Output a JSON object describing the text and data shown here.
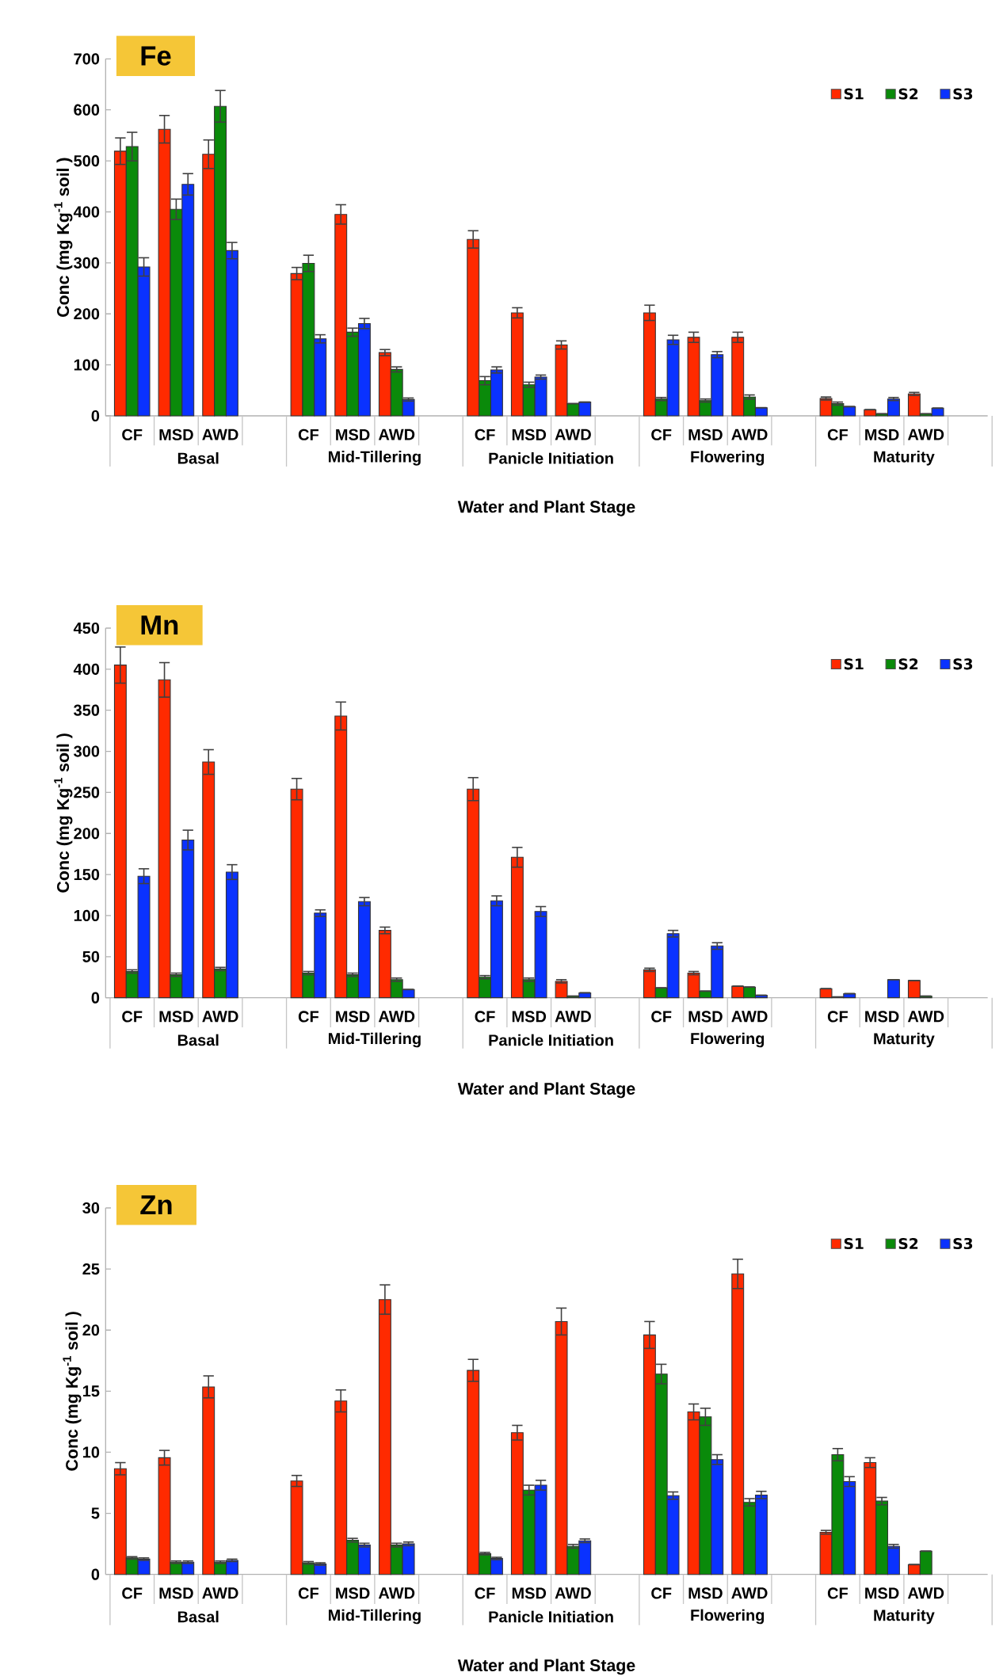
{
  "chart_data": [
    {
      "type": "bar",
      "title": "Fe",
      "xlabel": "Water and Plant Stage",
      "ylabel": "Conc (mg Kg$^{-1}$ soil )",
      "categories": [
        "CF",
        "MSD",
        "AWD",
        null,
        "CF",
        "MSD",
        "AWD",
        null,
        "CF",
        "MSD",
        "AWD",
        null,
        "CF",
        "MSD",
        "AWD",
        null,
        "CF",
        "MSD",
        "AWD",
        null
      ],
      "annotations": [
        "Basal",
        "Mid-Tillering",
        "Panicle Initiation",
        "Flowering",
        "Maturity"
      ],
      "ylim": [
        0,
        700
      ],
      "yticks": [
        0,
        100,
        200,
        300,
        400,
        500,
        600,
        700
      ],
      "legend": "top right",
      "series": [
        {
          "name": "S1",
          "color": "#ff2a00",
          "values": [
            519,
            562,
            513,
            null,
            279,
            395,
            124,
            null,
            346,
            202,
            139,
            null,
            202,
            154,
            154,
            null,
            34,
            12,
            43,
            null
          ],
          "errors": [
            26,
            27,
            28,
            null,
            12,
            19,
            6,
            null,
            17,
            10,
            8,
            null,
            15,
            10,
            10,
            null,
            3,
            null,
            3,
            null
          ]
        },
        {
          "name": "S2",
          "color": "#0a8a0a",
          "values": [
            528,
            405,
            607,
            null,
            299,
            164,
            91,
            null,
            69,
            61,
            24,
            null,
            33,
            30,
            37,
            null,
            24,
            4,
            4,
            null
          ],
          "errors": [
            28,
            20,
            31,
            null,
            16,
            8,
            5,
            null,
            8,
            5,
            null,
            null,
            3,
            3,
            4,
            null,
            3,
            null,
            null,
            null
          ]
        },
        {
          "name": "S3",
          "color": "#0a32ff",
          "values": [
            292,
            454,
            324,
            null,
            151,
            181,
            32,
            null,
            90,
            76,
            27,
            null,
            149,
            120,
            16,
            null,
            18,
            33,
            15,
            null
          ],
          "errors": [
            18,
            21,
            16,
            null,
            8,
            10,
            3,
            null,
            6,
            4,
            null,
            null,
            9,
            6,
            null,
            null,
            null,
            3,
            null,
            null
          ]
        }
      ]
    },
    {
      "type": "bar",
      "title": "Mn",
      "xlabel": "Water and Plant Stage",
      "ylabel": "Conc (mg Kg$^{-1}$ soil )",
      "categories": [
        "CF",
        "MSD",
        "AWD",
        null,
        "CF",
        "MSD",
        "AWD",
        null,
        "CF",
        "MSD",
        "AWD",
        null,
        "CF",
        "MSD",
        "AWD",
        null,
        "CF",
        "MSD",
        "AWD",
        null
      ],
      "annotations": [
        "Basal",
        "Mid-Tillering",
        "Panicle Initiation",
        "Flowering",
        "Maturity"
      ],
      "ylim": [
        0,
        450
      ],
      "yticks": [
        0,
        50,
        100,
        150,
        200,
        250,
        300,
        350,
        400,
        450
      ],
      "legend": "top right",
      "series": [
        {
          "name": "S1",
          "color": "#ff2a00",
          "values": [
            405,
            387,
            287,
            null,
            254,
            343,
            82,
            null,
            254,
            171,
            20,
            null,
            34,
            30,
            14,
            null,
            11,
            null,
            21,
            null
          ],
          "errors": [
            22,
            21,
            15,
            null,
            13,
            17,
            4,
            null,
            14,
            12,
            2,
            null,
            2,
            2,
            null,
            null,
            null,
            null,
            null,
            null
          ]
        },
        {
          "name": "S2",
          "color": "#0a8a0a",
          "values": [
            32,
            28,
            35,
            null,
            30,
            28,
            22,
            null,
            25,
            22,
            2,
            null,
            12,
            8,
            13,
            null,
            1,
            null,
            2,
            null
          ],
          "errors": [
            2,
            2,
            2,
            null,
            2,
            2,
            2,
            null,
            2,
            2,
            null,
            null,
            null,
            null,
            null,
            null,
            null,
            null,
            null,
            null
          ]
        },
        {
          "name": "S3",
          "color": "#0a32ff",
          "values": [
            148,
            192,
            153,
            null,
            103,
            117,
            10,
            null,
            118,
            105,
            6,
            null,
            78,
            63,
            3,
            null,
            5,
            22,
            null,
            null
          ],
          "errors": [
            9,
            12,
            9,
            null,
            4,
            5,
            null,
            null,
            6,
            6,
            null,
            null,
            4,
            4,
            null,
            null,
            null,
            null,
            null,
            null
          ]
        }
      ]
    },
    {
      "type": "bar",
      "title": "Zn",
      "xlabel": "Water and Plant Stage",
      "ylabel": "Conc (mg Kg$^{-1}$ soil )",
      "categories": [
        "CF",
        "MSD",
        "AWD",
        null,
        "CF",
        "MSD",
        "AWD",
        null,
        "CF",
        "MSD",
        "AWD",
        null,
        "CF",
        "MSD",
        "AWD",
        null,
        "CF",
        "MSD",
        "AWD",
        null
      ],
      "annotations": [
        "Basal",
        "Mid-Tillering",
        "Panicle Initiation",
        "Flowering",
        "Maturity"
      ],
      "ylim": [
        0,
        30
      ],
      "yticks": [
        0,
        5,
        10,
        15,
        20,
        25,
        30
      ],
      "legend": "top right",
      "series": [
        {
          "name": "S1",
          "color": "#ff2a00",
          "values": [
            8.65,
            9.55,
            15.35,
            null,
            7.65,
            14.2,
            22.5,
            null,
            16.7,
            11.6,
            20.7,
            null,
            19.6,
            13.3,
            24.6,
            null,
            3.45,
            9.15,
            0.8,
            null
          ],
          "errors": [
            0.5,
            0.6,
            0.9,
            null,
            0.45,
            0.9,
            1.2,
            null,
            0.9,
            0.6,
            1.1,
            null,
            1.1,
            0.65,
            1.2,
            null,
            0.15,
            0.4,
            null,
            null
          ]
        },
        {
          "name": "S2",
          "color": "#0a8a0a",
          "values": [
            1.35,
            1.0,
            1.0,
            null,
            0.95,
            2.8,
            2.4,
            null,
            1.7,
            6.9,
            2.3,
            null,
            16.4,
            12.9,
            5.9,
            null,
            9.8,
            6.0,
            1.9,
            null
          ],
          "errors": [
            0.1,
            0.1,
            0.1,
            null,
            0.1,
            0.15,
            0.15,
            null,
            0.1,
            0.4,
            0.15,
            null,
            0.8,
            0.7,
            0.3,
            null,
            0.5,
            0.3,
            null,
            null
          ]
        },
        {
          "name": "S3",
          "color": "#0a32ff",
          "values": [
            1.25,
            1.0,
            1.15,
            null,
            0.85,
            2.4,
            2.5,
            null,
            1.3,
            7.3,
            2.75,
            null,
            6.45,
            9.4,
            6.5,
            null,
            7.6,
            2.3,
            null,
            null
          ],
          "errors": [
            0.1,
            0.1,
            0.1,
            null,
            0.1,
            0.15,
            0.15,
            null,
            0.1,
            0.4,
            0.15,
            null,
            0.3,
            0.4,
            0.3,
            null,
            0.4,
            0.15,
            null,
            null
          ]
        }
      ]
    }
  ]
}
